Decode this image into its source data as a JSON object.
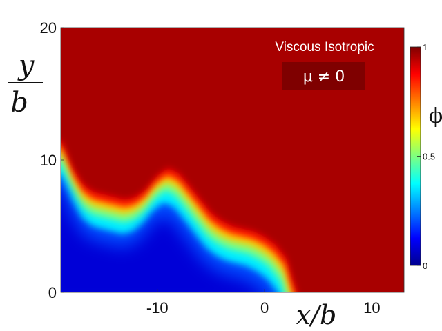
{
  "chart_data": {
    "type": "heatmap",
    "colormap": "jet",
    "xlim": [
      -19,
      13
    ],
    "ylim": [
      0,
      20
    ],
    "x_ticks": [
      {
        "value": -10,
        "label": "-10"
      },
      {
        "value": 0,
        "label": "0"
      },
      {
        "value": 10,
        "label": "10"
      }
    ],
    "y_ticks": [
      {
        "value": 0,
        "label": "0"
      },
      {
        "value": 10,
        "label": "10"
      },
      {
        "value": 20,
        "label": "20"
      }
    ],
    "xlabel": "x/b",
    "ylabel_num": "y",
    "ylabel_den": "b",
    "colorbar": {
      "label": "ϕ",
      "range": [
        0,
        1
      ],
      "ticks": [
        {
          "value": 0,
          "label": "0"
        },
        {
          "value": 0.5,
          "label": "0.5"
        },
        {
          "value": 1,
          "label": "1"
        }
      ]
    },
    "annotation": {
      "title": "Viscous Isotropic",
      "condition": "μ ≠ 0",
      "box_color": "#7f0000"
    },
    "interface_curve": {
      "x": [
        -19,
        -18,
        -17,
        -16,
        -15,
        -14,
        -13,
        -12,
        -11,
        -10,
        -9,
        -8,
        -7,
        -6,
        -5,
        -4,
        -3,
        -2,
        -1,
        0,
        1,
        2,
        2.5,
        3
      ],
      "y": [
        11.5,
        9.5,
        8.2,
        7.6,
        7.4,
        7.2,
        7.0,
        7.2,
        7.8,
        8.8,
        9.4,
        9.0,
        8.0,
        7.0,
        6.0,
        5.4,
        5.0,
        4.8,
        4.6,
        4.2,
        3.6,
        2.6,
        1.2,
        0
      ]
    },
    "low_region_level": 0.05,
    "high_region_level": 0.96
  }
}
